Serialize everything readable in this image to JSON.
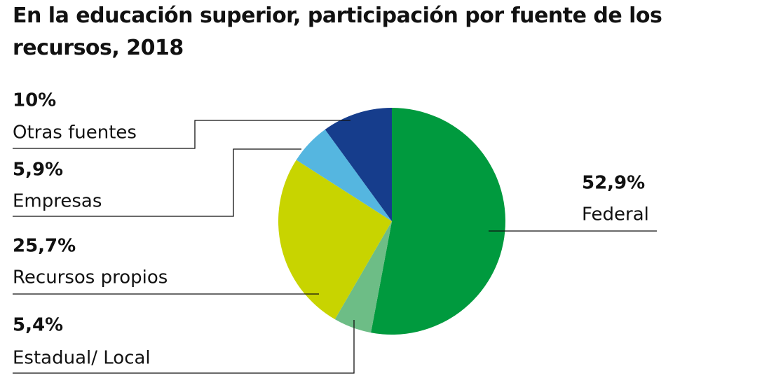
{
  "chart_data": {
    "type": "pie",
    "title": "En la educación superior, participación por fuente de los recursos, 2018",
    "categories": [
      "Federal",
      "Estadual/ Local",
      "Recursos propios",
      "Empresas",
      "Otras fuentes"
    ],
    "values": [
      52.9,
      5.4,
      25.7,
      5.9,
      10
    ],
    "value_labels": [
      "52,9%",
      "5,4%",
      "25,7%",
      "5,9%",
      "10%"
    ],
    "colors": [
      "#009a3e",
      "#6dbd86",
      "#c8d400",
      "#55b6e0",
      "#163d8c"
    ]
  }
}
